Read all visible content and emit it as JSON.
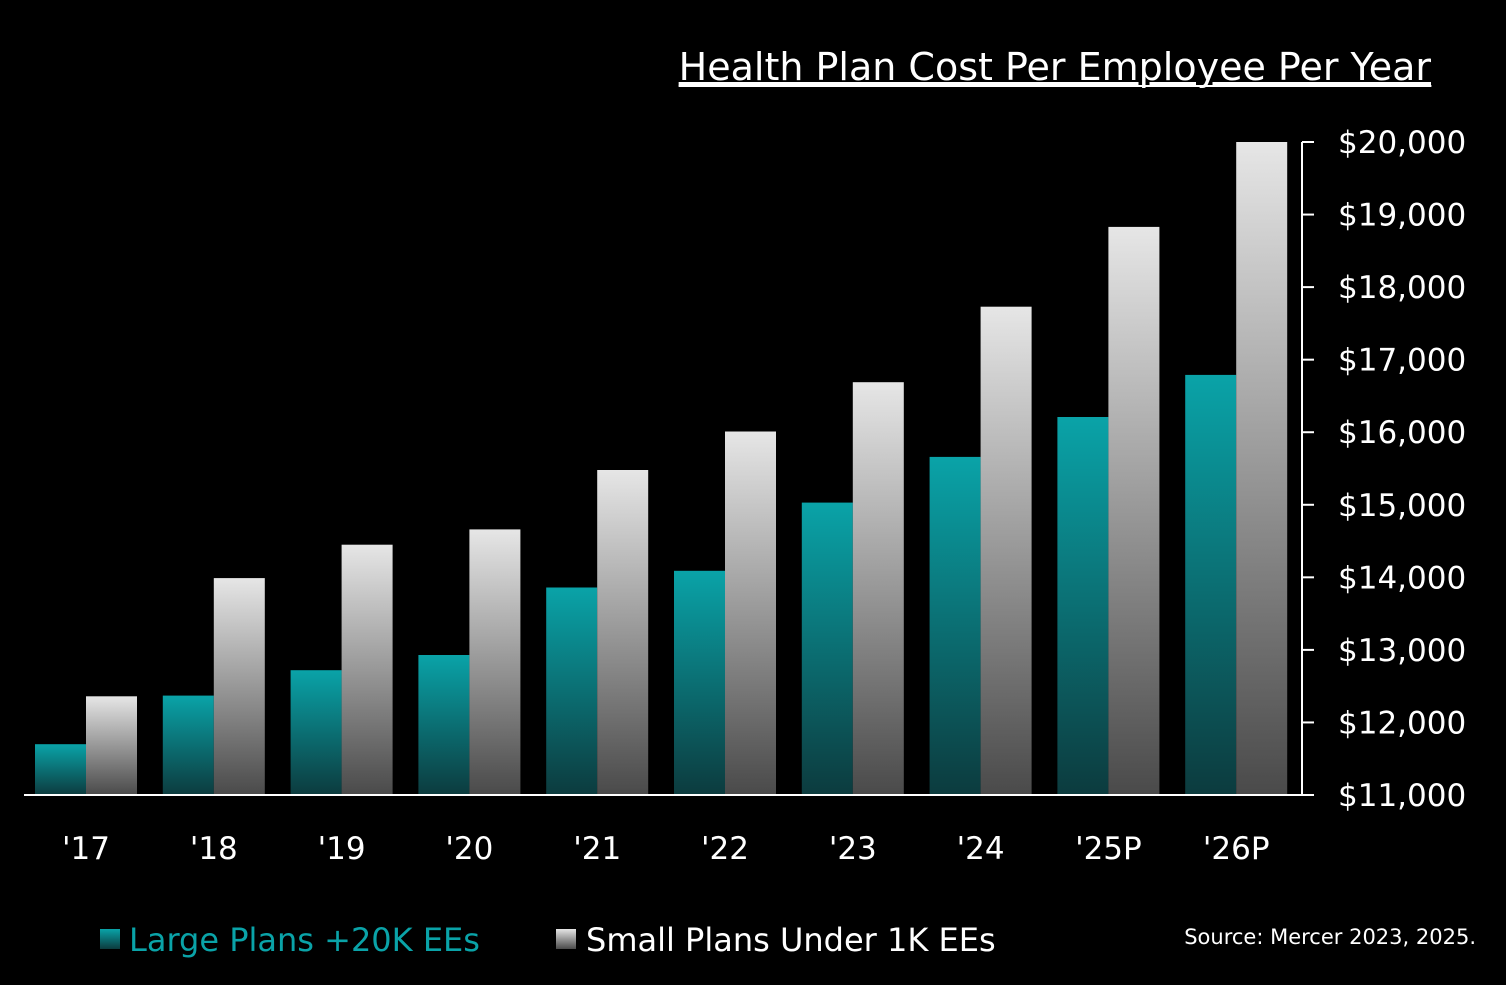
{
  "chart_data": {
    "type": "bar",
    "title": "Health Plan Cost Per Employee Per Year",
    "xlabel": "",
    "ylabel": "",
    "categories": [
      "'17",
      "'18",
      "'19",
      "'20",
      "'21",
      "'22",
      "'23",
      "'24",
      "'25P",
      "'26P"
    ],
    "series": [
      {
        "name": "Large Plans +20K EEs",
        "color": "#0a9ea3",
        "values": [
          11700,
          12370,
          12720,
          12930,
          13860,
          14090,
          15030,
          15660,
          16210,
          16790
        ]
      },
      {
        "name": "Small Plans Under 1K EEs",
        "color": "#d9d9d9",
        "values": [
          12360,
          13990,
          14450,
          14660,
          15480,
          16010,
          16690,
          17730,
          18830,
          20000
        ]
      }
    ],
    "ylim": [
      11000,
      20000
    ],
    "y_ticks": [
      20000,
      19000,
      18000,
      17000,
      16000,
      15000,
      14000,
      13000,
      12000,
      11000
    ],
    "y_tick_labels": [
      "$20,000",
      "$19,000",
      "$18,000",
      "$17,000",
      "$16,000",
      "$15,000",
      "$14,000",
      "$13,000",
      "$12,000",
      "$11,000"
    ],
    "y_axis_side": "right",
    "grid": false,
    "legend": "bottom-left",
    "source": "Source: Mercer 2023, 2025."
  }
}
